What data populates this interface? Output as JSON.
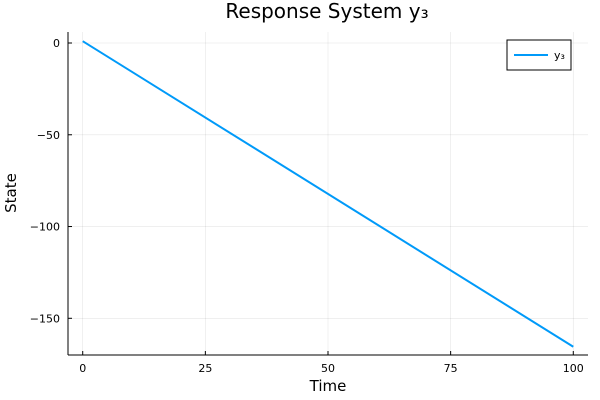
{
  "chart_data": {
    "type": "line",
    "title": "Response System y₃",
    "xlabel": "Time",
    "ylabel": "State",
    "xlim": [
      -3,
      103
    ],
    "ylim": [
      -170,
      6
    ],
    "x_ticks": [
      0,
      25,
      50,
      75,
      100
    ],
    "y_ticks": [
      0,
      -50,
      -100,
      -150
    ],
    "x_tick_labels": [
      "0",
      "25",
      "50",
      "75",
      "100"
    ],
    "y_tick_labels": [
      "0",
      "−50",
      "−100",
      "−150"
    ],
    "grid": true,
    "legend_position": "top-right",
    "series": [
      {
        "name": "y₃",
        "color": "#009af9",
        "x": [
          0,
          100
        ],
        "y": [
          1,
          -165.5
        ]
      }
    ]
  }
}
